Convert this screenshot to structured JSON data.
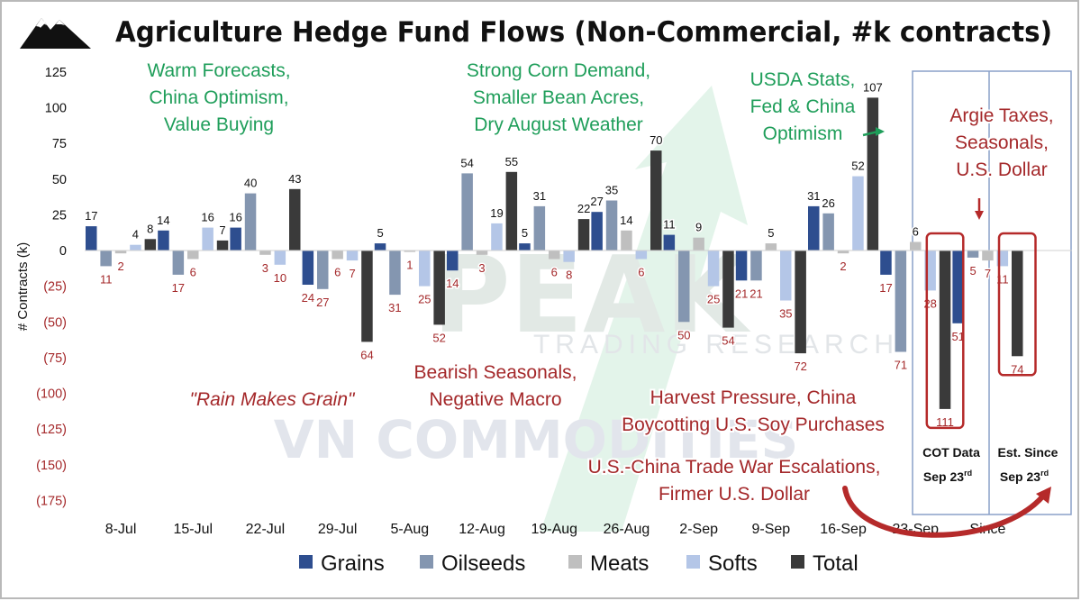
{
  "title": "Agriculture Hedge Fund Flows (Non-Commercial, #k contracts)",
  "watermark": {
    "brand": "PEAK",
    "tagline": "TRADING RESEARCH",
    "name": "VN COMMODITIES"
  },
  "colors": {
    "grains": "#2e4e8f",
    "oilseeds": "#8496b0",
    "meats": "#bfbfbf",
    "softs": "#b4c6e7",
    "total": "#3a3a3a",
    "green_annotation": "#1f9e5a",
    "red_annotation": "#a4282a",
    "arrow_green": "#d5efe0",
    "highlight_box": "#b52a2a",
    "frame": "#8aa0c8"
  },
  "chart_data": {
    "type": "bar",
    "title": "Agriculture Hedge Fund Flows (Non-Commercial, #k contracts)",
    "ylabel": "# Contracts (k)",
    "ylim": [
      -175,
      125
    ],
    "ytick_values": [
      125,
      100,
      75,
      50,
      25,
      0,
      -25,
      -50,
      -75,
      -100,
      -125,
      -150,
      -175
    ],
    "ytick_labels": [
      "125",
      "100",
      "75",
      "50",
      "25",
      "0",
      "(25)",
      "(50)",
      "(75)",
      "(100)",
      "(125)",
      "(150)",
      "(175)"
    ],
    "categories": [
      "8-Jul",
      "15-Jul",
      "22-Jul",
      "29-Jul",
      "5-Aug",
      "12-Aug",
      "19-Aug",
      "26-Aug",
      "2-Sep",
      "9-Sep",
      "16-Sep",
      "23-Sep",
      "Since"
    ],
    "series": [
      {
        "name": "Grains",
        "values": [
          17,
          14,
          16,
          -24,
          5,
          -14,
          5,
          27,
          11,
          -21,
          31,
          -17,
          -51
        ]
      },
      {
        "name": "Oilseeds",
        "values": [
          -11,
          -17,
          40,
          -27,
          -31,
          54,
          31,
          35,
          -50,
          -21,
          26,
          -71,
          -5
        ]
      },
      {
        "name": "Meats",
        "values": [
          -2,
          -6,
          -3,
          -6,
          -1,
          -3,
          -6,
          14,
          9,
          5,
          -2,
          6,
          -7
        ]
      },
      {
        "name": "Softs",
        "values": [
          4,
          16,
          -10,
          -7,
          -25,
          19,
          -8,
          -6,
          -25,
          -35,
          52,
          -28,
          -11
        ]
      },
      {
        "name": "Total",
        "values": [
          8,
          7,
          43,
          -64,
          -52,
          55,
          22,
          70,
          -54,
          -72,
          107,
          -111,
          -74
        ]
      }
    ],
    "data_labels": [
      [
        "17",
        "11",
        "2",
        "4",
        "8"
      ],
      [
        "14",
        "17",
        "6",
        "16",
        "7"
      ],
      [
        "16",
        "40",
        "3",
        "10",
        "43"
      ],
      [
        "24",
        "27",
        "6",
        "7",
        "64"
      ],
      [
        "5",
        "31",
        "1",
        "25",
        "52"
      ],
      [
        "14",
        "54",
        "3",
        "19",
        "55"
      ],
      [
        "5",
        "31",
        "6",
        "8",
        "22"
      ],
      [
        "27",
        "35",
        "14",
        "6",
        "70"
      ],
      [
        "11",
        "50",
        "9",
        "25",
        "54"
      ],
      [
        "21",
        "21",
        "5",
        "35",
        "72"
      ],
      [
        "31",
        "26",
        "2",
        "52",
        "107"
      ],
      [
        "17",
        "71",
        "6",
        "28",
        "111"
      ],
      [
        "51",
        "5",
        "7",
        "11",
        "74"
      ]
    ],
    "legend": {
      "position": "bottom",
      "entries": [
        "Grains",
        "Oilseeds",
        "Meats",
        "Softs",
        "Total"
      ]
    },
    "grid": false,
    "annotations": [
      {
        "lines": [
          "Warm Forecasts,",
          "China Optimism,",
          "Value Buying"
        ],
        "color": "green"
      },
      {
        "lines": [
          "Strong Corn Demand,",
          "Smaller Bean Acres,",
          "Dry August Weather"
        ],
        "color": "green"
      },
      {
        "lines": [
          "USDA Stats,",
          "Fed & China",
          "Optimism"
        ],
        "color": "green"
      },
      {
        "lines": [
          "Argie Taxes,",
          "Seasonals,",
          "U.S. Dollar"
        ],
        "color": "red"
      },
      {
        "lines": [
          "\"Rain Makes Grain\""
        ],
        "color": "red"
      },
      {
        "lines": [
          "Bearish Seasonals,",
          "Negative Macro"
        ],
        "color": "red"
      },
      {
        "lines": [
          "Harvest Pressure, China",
          "Boycotting U.S. Soy Purchases"
        ],
        "color": "red"
      },
      {
        "lines": [
          "U.S.-China Trade War Escalations,",
          "Firmer U.S. Dollar"
        ],
        "color": "red"
      }
    ],
    "panel_notes": [
      {
        "line1": "COT Data",
        "line2": "Sep 23",
        "sup": "rd"
      },
      {
        "line1": "Est. Since",
        "line2": "Sep 23",
        "sup": "rd"
      }
    ]
  }
}
